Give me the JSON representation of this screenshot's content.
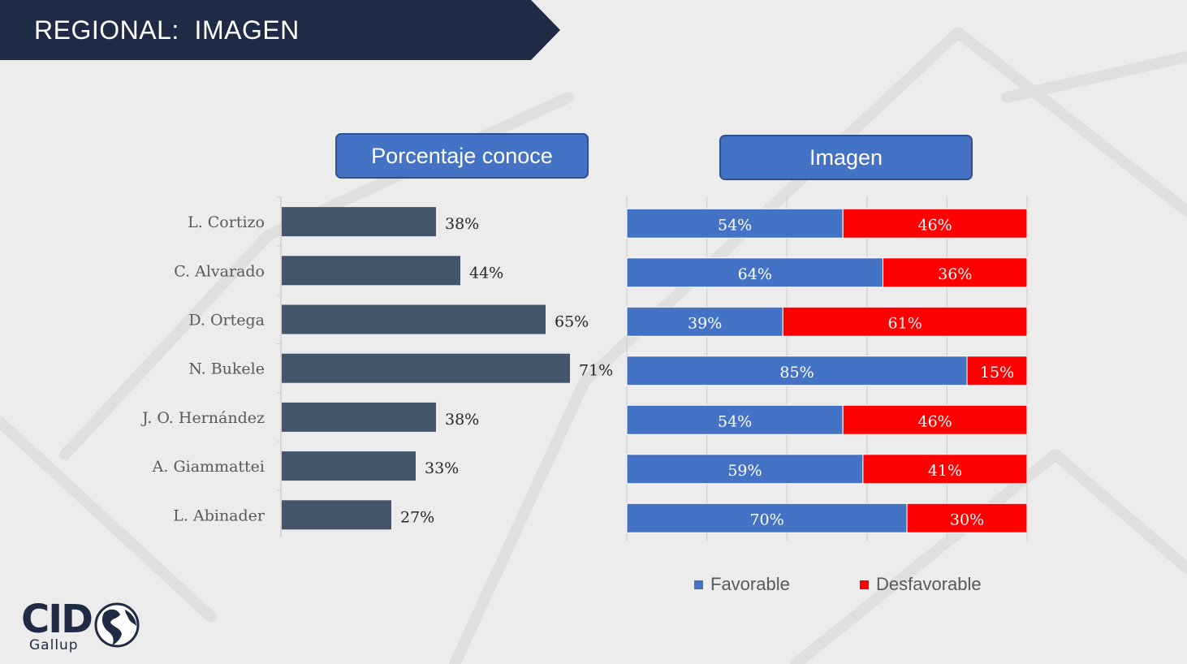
{
  "slide": {
    "title": "REGIONAL:  IMAGEN"
  },
  "panels": {
    "conoce_title": "Porcentaje conoce",
    "imagen_title": "Imagen"
  },
  "legend": {
    "favorable": "Favorable",
    "desfavorable": "Desfavorable"
  },
  "logo": {
    "text": "CID",
    "sub": "Gallup"
  },
  "colors": {
    "banner": "#1f2a44",
    "header": "#4472c4",
    "conoce_bar": "#44546a",
    "favorable": "#4472c4",
    "desfavorable": "#ff0000"
  },
  "chart_data": [
    {
      "type": "bar",
      "orientation": "horizontal",
      "title": "Porcentaje conoce",
      "categories": [
        "L. Cortizo",
        "C. Alvarado",
        "D. Ortega",
        "N. Bukele",
        "J. O. Hernández",
        "A. Giammattei",
        "L. Abinader"
      ],
      "values": [
        38,
        44,
        65,
        71,
        38,
        33,
        27
      ],
      "data_labels": [
        "38%",
        "44%",
        "65%",
        "71%",
        "38%",
        "33%",
        "27%"
      ],
      "xlim": [
        0,
        100
      ],
      "unit": "%",
      "grid": false
    },
    {
      "type": "bar",
      "orientation": "horizontal",
      "stacked": true,
      "title": "Imagen",
      "categories": [
        "L. Cortizo",
        "C. Alvarado",
        "D. Ortega",
        "N. Bukele",
        "J. O. Hernández",
        "A. Giammattei",
        "L. Abinader"
      ],
      "series": [
        {
          "name": "Favorable",
          "values": [
            54,
            64,
            39,
            85,
            54,
            59,
            70
          ],
          "labels": [
            "54%",
            "64%",
            "39%",
            "85%",
            "54%",
            "59%",
            "70%"
          ]
        },
        {
          "name": "Desfavorable",
          "values": [
            46,
            36,
            61,
            15,
            46,
            41,
            30
          ],
          "labels": [
            "46%",
            "36%",
            "61%",
            "15%",
            "46%",
            "41%",
            "30%"
          ]
        }
      ],
      "xlim": [
        0,
        100
      ],
      "unit": "%",
      "grid": true,
      "legend_position": "bottom"
    }
  ]
}
